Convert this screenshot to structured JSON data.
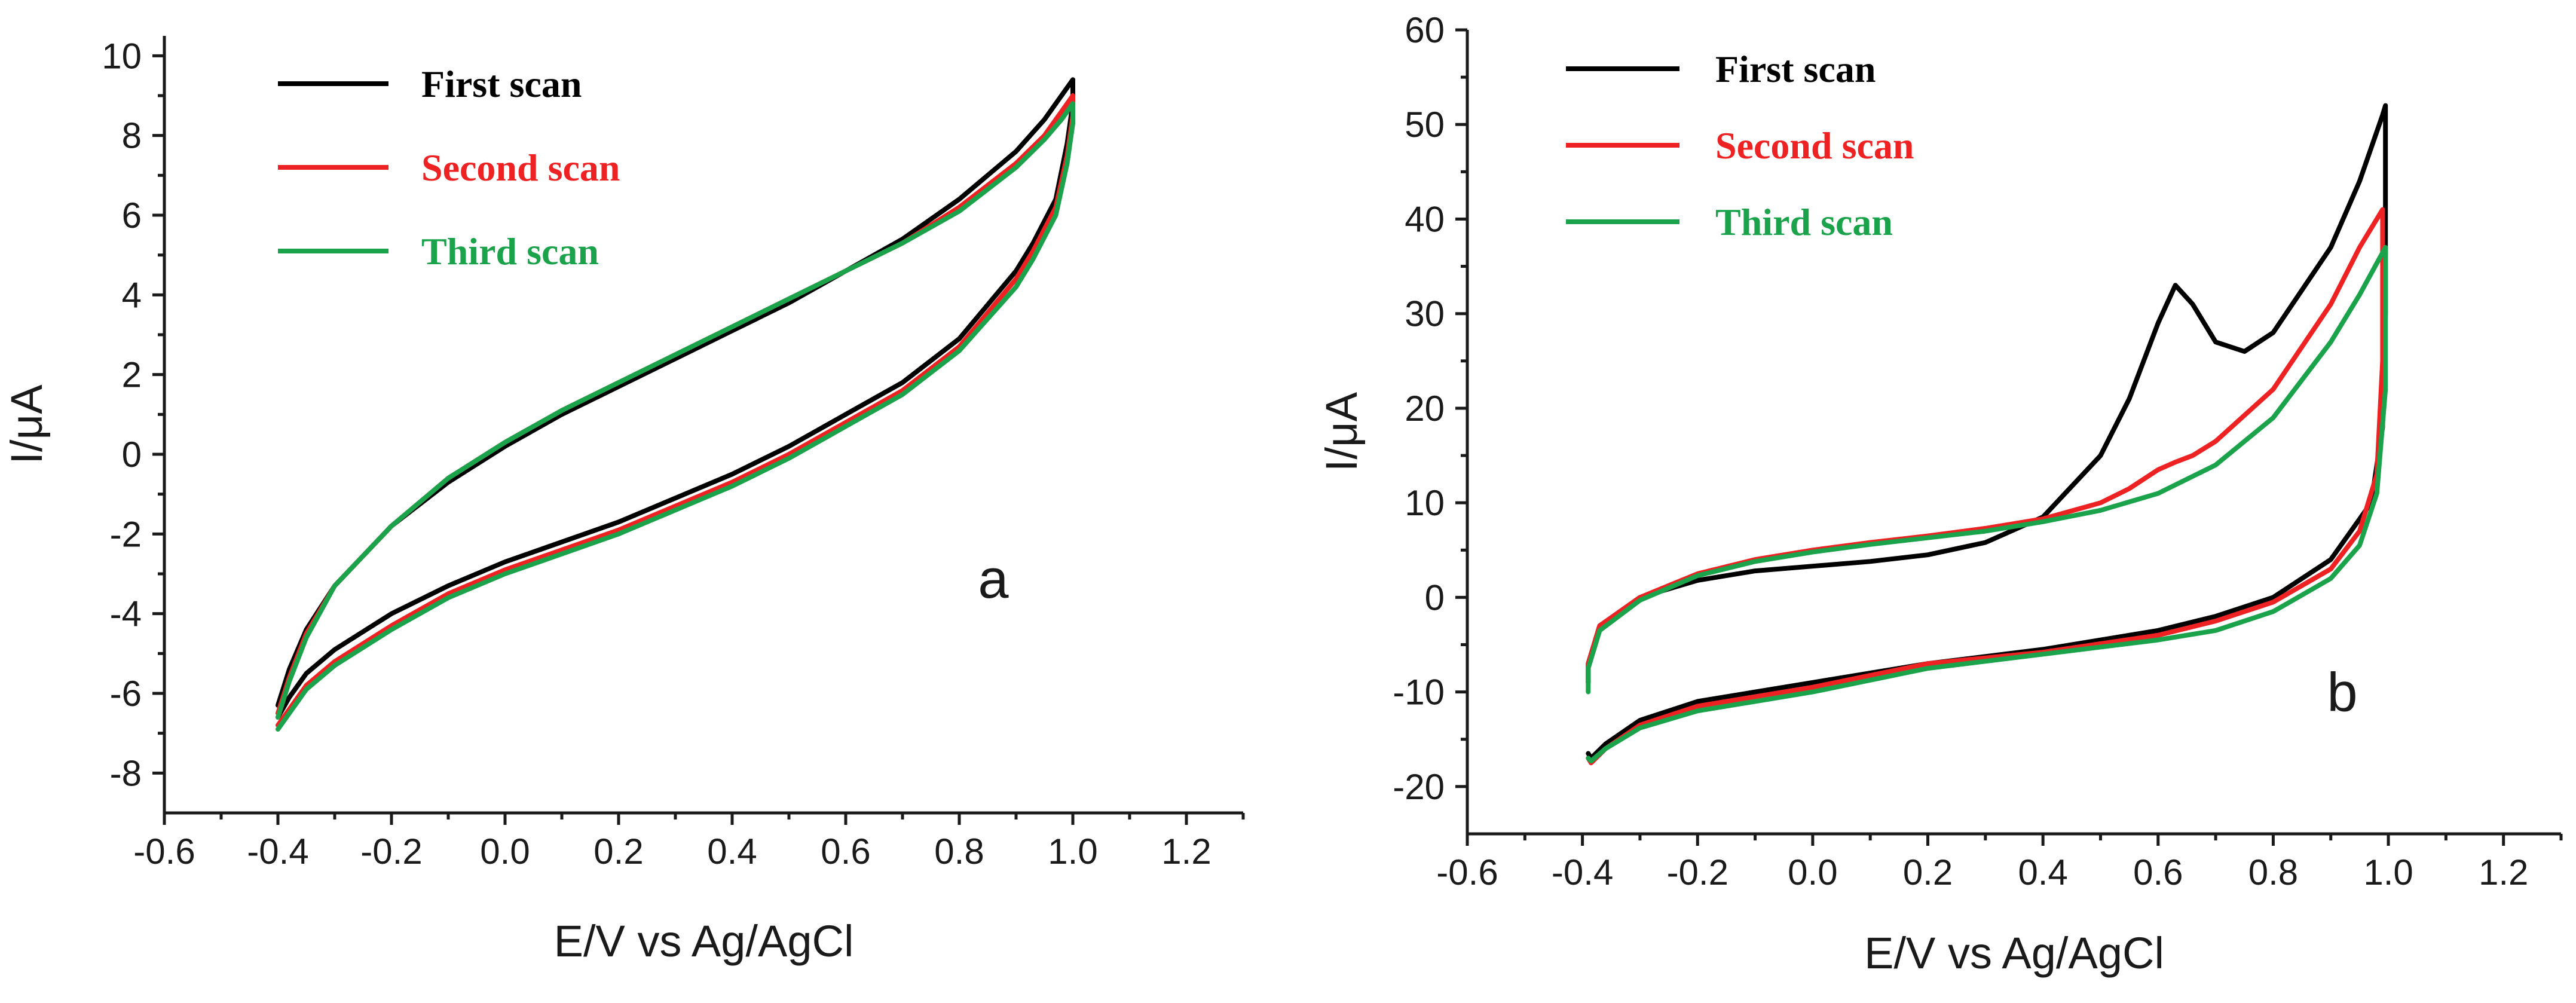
{
  "chart_data": [
    {
      "type": "line",
      "panel_label": "a",
      "xlabel": "E/V vs Ag/AgCl",
      "ylabel": "I/μA",
      "xlim": [
        -0.6,
        1.3
      ],
      "ylim": [
        -9,
        10.5
      ],
      "xticks": [
        -0.6,
        -0.4,
        -0.2,
        0.0,
        0.2,
        0.4,
        0.6,
        0.8,
        1.0,
        1.2
      ],
      "xtick_labels": [
        "-0.6",
        "-0.4",
        "-0.2",
        "0.0",
        "0.2",
        "0.4",
        "0.6",
        "0.8",
        "1.0",
        "1.2"
      ],
      "yticks": [
        -8,
        -6,
        -4,
        -2,
        0,
        2,
        4,
        6,
        8,
        10
      ],
      "ytick_labels": [
        "-8",
        "-6",
        "-4",
        "-2",
        "0",
        "2",
        "4",
        "6",
        "8",
        "10"
      ],
      "legend": [
        {
          "label": "First scan",
          "color": "#000000"
        },
        {
          "label": "Second scan",
          "color": "#ee2222"
        },
        {
          "label": "Third scan",
          "color": "#1aa34a"
        }
      ],
      "series": [
        {
          "name": "First scan",
          "color": "#000000",
          "x": [
            -0.4,
            -0.38,
            -0.35,
            -0.3,
            -0.2,
            -0.1,
            0.0,
            0.1,
            0.2,
            0.3,
            0.4,
            0.5,
            0.6,
            0.7,
            0.8,
            0.9,
            0.95,
            0.98,
            1.0,
            1.0,
            0.99,
            0.97,
            0.93,
            0.9,
            0.8,
            0.7,
            0.6,
            0.5,
            0.4,
            0.3,
            0.2,
            0.1,
            0.0,
            -0.1,
            -0.2,
            -0.3,
            -0.35,
            -0.38,
            -0.4
          ],
          "y": [
            -6.3,
            -5.4,
            -4.4,
            -3.3,
            -1.8,
            -0.7,
            0.2,
            1.0,
            1.7,
            2.4,
            3.1,
            3.8,
            4.6,
            5.4,
            6.4,
            7.6,
            8.4,
            9.0,
            9.4,
            8.8,
            7.8,
            6.4,
            5.3,
            4.6,
            2.9,
            1.8,
            1.0,
            0.2,
            -0.5,
            -1.1,
            -1.7,
            -2.2,
            -2.7,
            -3.3,
            -4.0,
            -4.9,
            -5.5,
            -6.1,
            -6.6
          ]
        },
        {
          "name": "Second scan",
          "color": "#ee2222",
          "x": [
            -0.4,
            -0.38,
            -0.35,
            -0.3,
            -0.2,
            -0.1,
            0.0,
            0.1,
            0.2,
            0.3,
            0.4,
            0.5,
            0.6,
            0.7,
            0.8,
            0.9,
            0.95,
            0.98,
            1.0,
            1.0,
            0.99,
            0.97,
            0.93,
            0.9,
            0.8,
            0.7,
            0.6,
            0.5,
            0.4,
            0.3,
            0.2,
            0.1,
            0.0,
            -0.1,
            -0.2,
            -0.3,
            -0.35,
            -0.38,
            -0.4
          ],
          "y": [
            -6.5,
            -5.6,
            -4.5,
            -3.3,
            -1.8,
            -0.6,
            0.3,
            1.1,
            1.8,
            2.5,
            3.2,
            3.9,
            4.6,
            5.3,
            6.2,
            7.3,
            8.0,
            8.6,
            9.0,
            8.5,
            7.5,
            6.2,
            5.1,
            4.4,
            2.7,
            1.6,
            0.8,
            0.0,
            -0.7,
            -1.3,
            -1.9,
            -2.4,
            -2.9,
            -3.5,
            -4.3,
            -5.2,
            -5.8,
            -6.4,
            -6.8
          ]
        },
        {
          "name": "Third scan",
          "color": "#1aa34a",
          "x": [
            -0.4,
            -0.38,
            -0.35,
            -0.3,
            -0.2,
            -0.1,
            0.0,
            0.1,
            0.2,
            0.3,
            0.4,
            0.5,
            0.6,
            0.7,
            0.8,
            0.9,
            0.95,
            0.98,
            1.0,
            1.0,
            0.99,
            0.97,
            0.93,
            0.9,
            0.8,
            0.7,
            0.6,
            0.5,
            0.4,
            0.3,
            0.2,
            0.1,
            0.0,
            -0.1,
            -0.2,
            -0.3,
            -0.35,
            -0.38,
            -0.4
          ],
          "y": [
            -6.6,
            -5.7,
            -4.6,
            -3.3,
            -1.8,
            -0.6,
            0.3,
            1.1,
            1.8,
            2.5,
            3.2,
            3.9,
            4.6,
            5.3,
            6.1,
            7.2,
            7.9,
            8.4,
            8.8,
            8.3,
            7.3,
            6.0,
            4.9,
            4.2,
            2.6,
            1.5,
            0.7,
            -0.1,
            -0.8,
            -1.4,
            -2.0,
            -2.5,
            -3.0,
            -3.6,
            -4.4,
            -5.3,
            -5.9,
            -6.5,
            -6.9
          ]
        }
      ]
    },
    {
      "type": "line",
      "panel_label": "b",
      "xlabel": "E/V vs Ag/AgCl",
      "ylabel": "I/μA",
      "xlim": [
        -0.6,
        1.3
      ],
      "ylim": [
        -25,
        60
      ],
      "xticks": [
        -0.6,
        -0.4,
        -0.2,
        0.0,
        0.2,
        0.4,
        0.6,
        0.8,
        1.0,
        1.2
      ],
      "xtick_labels": [
        "-0.6",
        "-0.4",
        "-0.2",
        "0.0",
        "0.2",
        "0.4",
        "0.6",
        "0.8",
        "1.0",
        "1.2"
      ],
      "yticks": [
        -20,
        -10,
        0,
        10,
        20,
        30,
        40,
        50,
        60
      ],
      "ytick_labels": [
        "-20",
        "-10",
        "0",
        "10",
        "20",
        "30",
        "40",
        "50",
        "60"
      ],
      "legend": [
        {
          "label": "First scan",
          "color": "#000000"
        },
        {
          "label": "Second scan",
          "color": "#ee2222"
        },
        {
          "label": "Third scan",
          "color": "#1aa34a"
        }
      ],
      "series": [
        {
          "name": "First scan",
          "color": "#000000",
          "x": [
            -0.39,
            -0.39,
            -0.37,
            -0.3,
            -0.2,
            -0.1,
            0.0,
            0.1,
            0.2,
            0.3,
            0.4,
            0.5,
            0.55,
            0.6,
            0.63,
            0.66,
            0.7,
            0.75,
            0.8,
            0.9,
            0.95,
            0.99,
            0.995,
            0.995,
            0.99,
            0.97,
            0.9,
            0.8,
            0.7,
            0.6,
            0.4,
            0.2,
            0.0,
            -0.2,
            -0.3,
            -0.36,
            -0.385,
            -0.39
          ],
          "y": [
            -9,
            -7,
            -3,
            0,
            1.8,
            2.8,
            3.3,
            3.8,
            4.5,
            5.8,
            8.5,
            15,
            21,
            29,
            33,
            31,
            27,
            26,
            28,
            37,
            44,
            51,
            52,
            30,
            18,
            10,
            4,
            0,
            -2,
            -3.5,
            -5.5,
            -7,
            -9,
            -11,
            -13,
            -15.5,
            -17,
            -16.5
          ]
        },
        {
          "name": "Second scan",
          "color": "#ee2222",
          "x": [
            -0.39,
            -0.39,
            -0.37,
            -0.3,
            -0.2,
            -0.1,
            0.0,
            0.1,
            0.2,
            0.3,
            0.4,
            0.5,
            0.55,
            0.6,
            0.63,
            0.66,
            0.7,
            0.8,
            0.9,
            0.95,
            0.99,
            0.99,
            0.98,
            0.95,
            0.9,
            0.8,
            0.7,
            0.6,
            0.4,
            0.2,
            0.0,
            -0.2,
            -0.3,
            -0.36,
            -0.385,
            -0.39
          ],
          "y": [
            -9,
            -7,
            -3,
            0,
            2.5,
            4,
            5,
            5.8,
            6.5,
            7.3,
            8.3,
            10,
            11.5,
            13.5,
            14.3,
            15,
            16.5,
            22,
            31,
            37,
            41,
            25,
            13,
            7,
            3,
            -0.5,
            -2.5,
            -4,
            -5.8,
            -7,
            -9.5,
            -11.5,
            -13.5,
            -16,
            -17.5,
            -17
          ]
        },
        {
          "name": "Third scan",
          "color": "#1aa34a",
          "x": [
            -0.39,
            -0.39,
            -0.37,
            -0.3,
            -0.2,
            -0.1,
            0.0,
            0.1,
            0.2,
            0.3,
            0.4,
            0.5,
            0.6,
            0.7,
            0.8,
            0.9,
            0.95,
            0.995,
            0.995,
            0.98,
            0.95,
            0.9,
            0.8,
            0.7,
            0.6,
            0.4,
            0.2,
            0.0,
            -0.2,
            -0.3,
            -0.36,
            -0.385,
            -0.39
          ],
          "y": [
            -10,
            -7.5,
            -3.5,
            -0.3,
            2.3,
            3.8,
            4.8,
            5.6,
            6.3,
            7.0,
            8.0,
            9.2,
            11,
            14,
            19,
            27,
            32,
            37,
            22,
            11,
            5.5,
            2,
            -1.5,
            -3.5,
            -4.5,
            -6,
            -7.5,
            -10,
            -12,
            -13.8,
            -16,
            -17.3,
            -17
          ]
        }
      ]
    }
  ]
}
